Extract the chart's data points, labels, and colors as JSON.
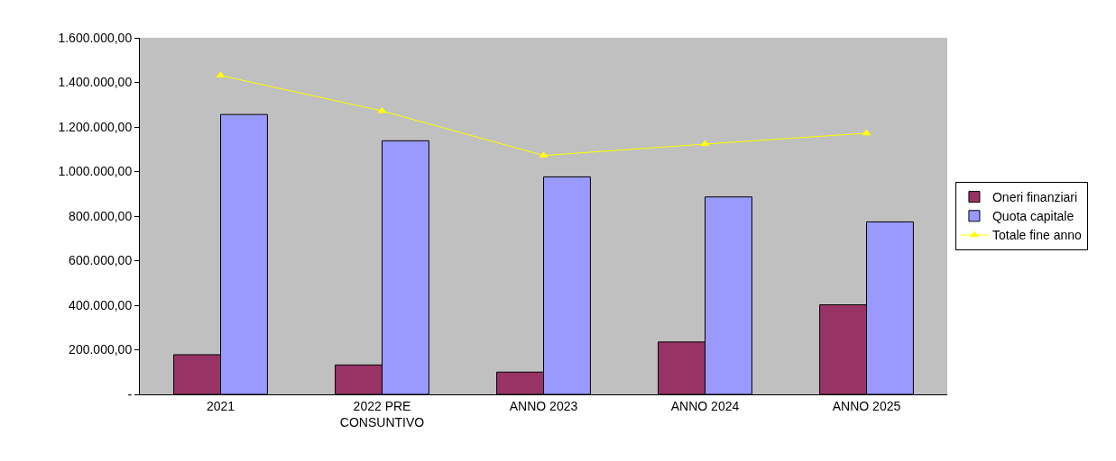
{
  "chart_data": {
    "type": "bar",
    "categories": [
      "2021",
      "2022 PRE CONSUNTIVO",
      "ANNO 2023",
      "ANNO 2024",
      "ANNO 2025"
    ],
    "series": [
      {
        "name": "Oneri finanziari",
        "color": "#993366",
        "values": [
          178000,
          132000,
          100000,
          235000,
          402000
        ]
      },
      {
        "name": "Quota capitale",
        "color": "#9999ff",
        "values": [
          1256000,
          1138000,
          976000,
          886000,
          774000
        ]
      },
      {
        "name": "Totale fine anno",
        "type": "line",
        "color": "#ffff00",
        "marker": "triangle",
        "values": [
          1431000,
          1272000,
          1072000,
          1123000,
          1172000
        ]
      }
    ],
    "ylim": [
      0,
      1600000
    ],
    "yticks": [
      {
        "value": 0,
        "label": "-"
      },
      {
        "value": 200000,
        "label": "200.000,00"
      },
      {
        "value": 400000,
        "label": "400.000,00"
      },
      {
        "value": 600000,
        "label": "600.000,00"
      },
      {
        "value": 800000,
        "label": "800.000,00"
      },
      {
        "value": 1000000,
        "label": "1.000.000,00"
      },
      {
        "value": 1200000,
        "label": "1.200.000,00"
      },
      {
        "value": 1400000,
        "label": "1.400.000,00"
      },
      {
        "value": 1600000,
        "label": "1.600.000,00"
      }
    ],
    "grid": false,
    "legend": "right"
  }
}
